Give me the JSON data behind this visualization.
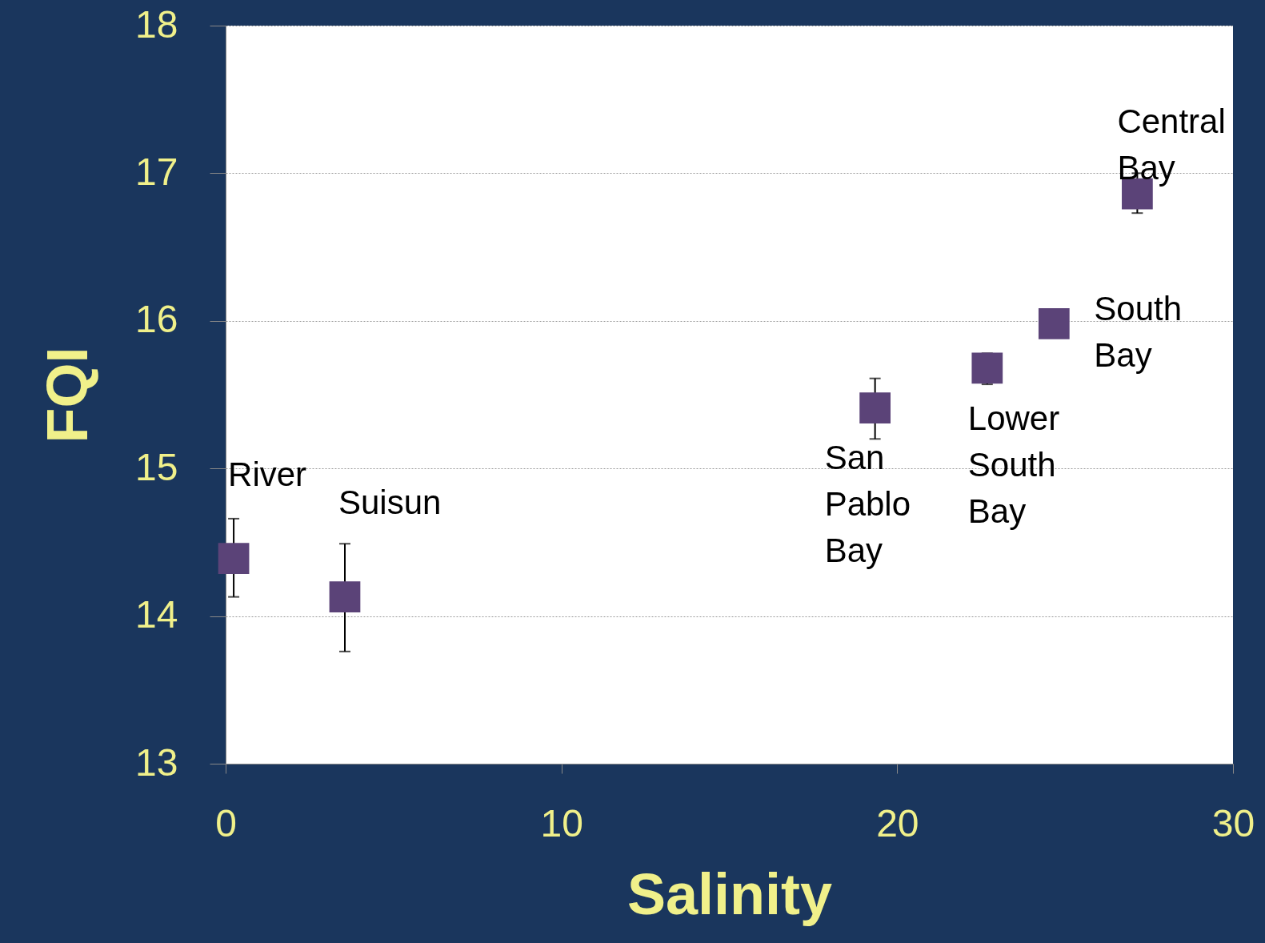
{
  "chart_data": {
    "type": "scatter",
    "xlabel": "Salinity",
    "ylabel": "FQI",
    "x": [
      0.24,
      3.55,
      19.34,
      22.68,
      24.67,
      27.15
    ],
    "values": [
      14.39,
      14.13,
      15.41,
      15.68,
      15.98,
      16.86
    ],
    "errors": [
      [
        14.13,
        14.66
      ],
      [
        13.76,
        14.49
      ],
      [
        15.2,
        15.61
      ],
      [
        15.57,
        15.78
      ],
      null,
      [
        16.73,
        17.0
      ]
    ],
    "color": "#5b4378",
    "marker": "square",
    "grid": "y",
    "xlim": [
      0,
      30
    ],
    "xticks": [
      0,
      10,
      20,
      30
    ],
    "ylim": [
      13,
      18
    ],
    "yticks": [
      13,
      14,
      15,
      16,
      17,
      18
    ],
    "annotations": [
      {
        "text": "River",
        "x": 0.24,
        "y": 14.39
      },
      {
        "text": "Suisun",
        "x": 3.55,
        "y": 14.13
      },
      {
        "text": "San\nPablo\nBay",
        "x": 19.34,
        "y": 15.41
      },
      {
        "text": "Lower\nSouth\nBay",
        "x": 22.68,
        "y": 15.68
      },
      {
        "text": "South\nBay",
        "x": 24.67,
        "y": 15.98
      },
      {
        "text": "Central\nBay",
        "x": 27.15,
        "y": 16.86
      }
    ]
  }
}
